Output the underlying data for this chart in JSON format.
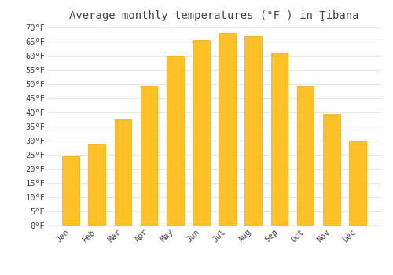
{
  "title": "Average monthly temperatures (°F ) in Ţibana",
  "months": [
    "Jan",
    "Feb",
    "Mar",
    "Apr",
    "May",
    "Jun",
    "Jul",
    "Aug",
    "Sep",
    "Oct",
    "Nov",
    "Dec"
  ],
  "values": [
    24.5,
    29.0,
    37.5,
    49.5,
    60.0,
    65.5,
    68.0,
    67.0,
    61.0,
    49.5,
    39.5,
    30.0
  ],
  "bar_color": "#FFC125",
  "bar_edge_color": "#FFA500",
  "background_color": "#FFFFFF",
  "grid_color": "#E8E8E8",
  "text_color": "#444444",
  "ylim": [
    0,
    70
  ],
  "ytick_step": 5,
  "title_fontsize": 10,
  "tick_fontsize": 7.5,
  "bar_width": 0.65
}
